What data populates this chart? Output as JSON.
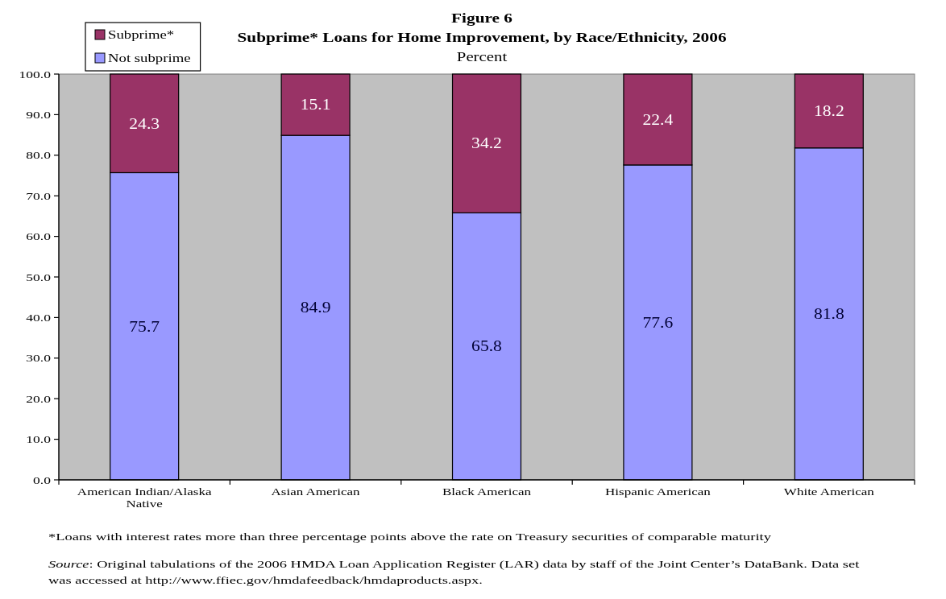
{
  "chart_data": {
    "type": "bar",
    "title": "Figure 6\nSubprime* Loans for Home Improvement, by Race/Ethnicity, 2006",
    "subtitle": "Percent",
    "categories": [
      "American Indian/Alaska Native",
      "Asian American",
      "Black American",
      "Hispanic American",
      "White American"
    ],
    "series": [
      {
        "name": "Not subprime",
        "color": "#9999ff",
        "values": [
          75.7,
          84.9,
          65.8,
          77.6,
          81.8
        ]
      },
      {
        "name": "Subprime*",
        "color": "#993366",
        "values": [
          24.3,
          15.1,
          34.2,
          22.4,
          18.2
        ]
      }
    ],
    "stacked": true,
    "data_labels": true,
    "legend": "top left",
    "ylim": [
      0,
      100
    ],
    "yticks": [
      {
        "value": 0,
        "label": "0.0"
      },
      {
        "value": 10,
        "label": "10.0"
      },
      {
        "value": 20,
        "label": "20.0"
      },
      {
        "value": 30,
        "label": "30.0"
      },
      {
        "value": 40,
        "label": "40.0"
      },
      {
        "value": 50,
        "label": "50.0"
      },
      {
        "value": 60,
        "label": "60.0"
      },
      {
        "value": 70,
        "label": "70.0"
      },
      {
        "value": 80,
        "label": "80.0"
      },
      {
        "value": 90,
        "label": "90.0"
      },
      {
        "value": 100,
        "label": "100.0"
      }
    ],
    "annotations": [
      "*Loans with interest rates more than three percentage points above the rate on Treasury securities of comparable maturity",
      "Source: Original tabulations of the 2006 HMDA Loan Application Register (LAR) data by staff of the Joint Center’s DataBank. Data set was accessed at http://www.ffiec.gov/hmdafeedback/hmdaproducts.aspx."
    ]
  }
}
